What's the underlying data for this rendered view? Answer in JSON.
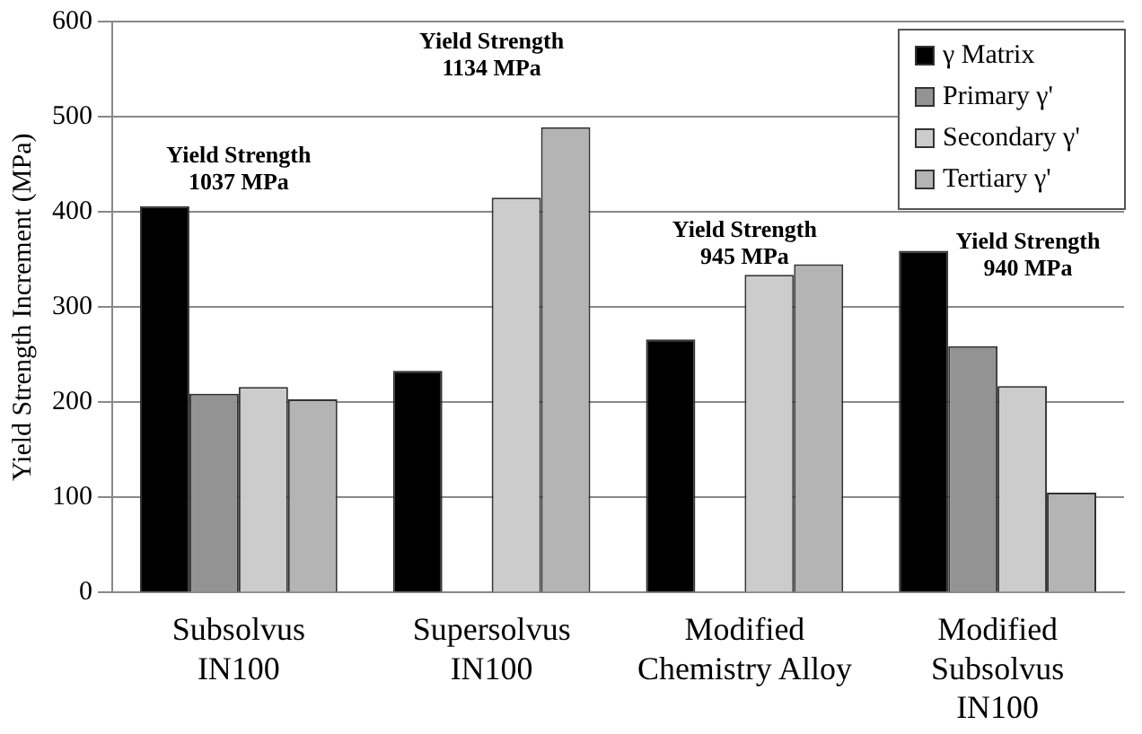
{
  "chart_data": {
    "type": "bar",
    "ylabel": "Yield Strength Increment (MPa)",
    "categories": [
      "Subsolvus\nIN100",
      "Supersolvus\nIN100",
      "Modified\nChemistry Alloy",
      "Modified\nSubsolvus\nIN100"
    ],
    "series": [
      {
        "name": "γ Matrix",
        "color": "#000000",
        "values": [
          406,
          233,
          266,
          359
        ]
      },
      {
        "name": "Primary γ'",
        "color": "#939393",
        "values": [
          209,
          null,
          null,
          259
        ]
      },
      {
        "name": "Secondary γ'",
        "color": "#cccccc",
        "values": [
          216,
          415,
          334,
          217
        ]
      },
      {
        "name": "Tertiary γ'",
        "color": "#b4b4b4",
        "values": [
          203,
          489,
          345,
          105
        ]
      }
    ],
    "ylim": [
      0,
      600
    ],
    "yticks": [
      0,
      100,
      200,
      300,
      400,
      500,
      600
    ],
    "grid": "y",
    "legend": "top right",
    "annotations": [
      "Yield Strength\n1037 MPa",
      "Yield Strength\n1134 MPa",
      "Yield Strength\n945 MPa",
      "Yield Strength\n940 MPa"
    ]
  }
}
